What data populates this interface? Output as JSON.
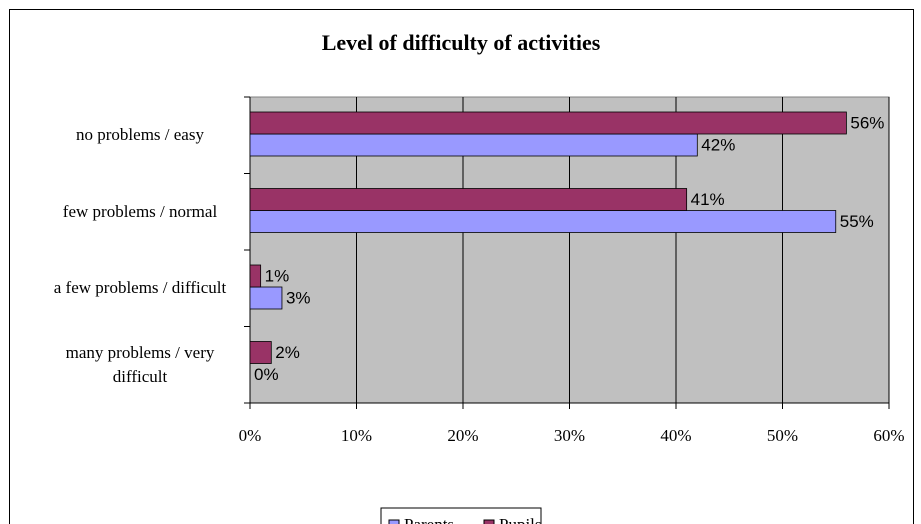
{
  "chart_data": {
    "type": "bar",
    "orientation": "horizontal",
    "title": "Level of difficulty of activities",
    "categories": [
      "no problems / easy",
      "few problems / normal",
      "a few problems / difficult",
      "many problems / very difficult"
    ],
    "series": [
      {
        "name": "Parents",
        "color": "#9999ff",
        "values": [
          42,
          55,
          3,
          0
        ],
        "value_labels": [
          "42%",
          "55%",
          "3%",
          "0%"
        ]
      },
      {
        "name": "Pupils",
        "color": "#993366",
        "values": [
          56,
          41,
          1,
          2
        ],
        "value_labels": [
          "56%",
          "41%",
          "1%",
          "2%"
        ]
      }
    ],
    "xlim": [
      0,
      60
    ],
    "xticks": [
      {
        "value": 0,
        "label": "0%"
      },
      {
        "value": 10,
        "label": "10%"
      },
      {
        "value": 20,
        "label": "20%"
      },
      {
        "value": 30,
        "label": "30%"
      },
      {
        "value": 40,
        "label": "40%"
      },
      {
        "value": 50,
        "label": "50%"
      },
      {
        "value": 60,
        "label": "60%"
      }
    ],
    "grid": true,
    "legend": "bottom"
  }
}
